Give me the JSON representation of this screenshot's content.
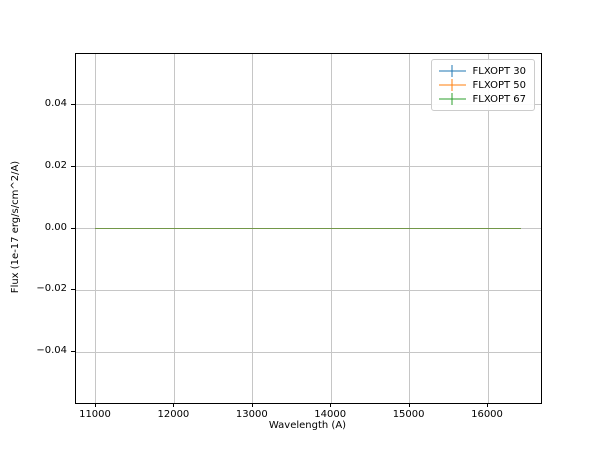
{
  "chart_data": {
    "type": "line",
    "title": "",
    "xlabel": "Wavelength (A)",
    "ylabel": "Flux (1e-17 erg/s/cm^2/A)",
    "xlim": [
      10745,
      16676
    ],
    "ylim": [
      -0.0565,
      0.0565
    ],
    "xticks": [
      {
        "value": 11000,
        "label": "11000"
      },
      {
        "value": 12000,
        "label": "12000"
      },
      {
        "value": 13000,
        "label": "13000"
      },
      {
        "value": 14000,
        "label": "14000"
      },
      {
        "value": 15000,
        "label": "15000"
      },
      {
        "value": 16000,
        "label": "16000"
      }
    ],
    "yticks": [
      {
        "value": 0.04,
        "label": "0.04"
      },
      {
        "value": 0.02,
        "label": "0.02"
      },
      {
        "value": 0.0,
        "label": "0.00"
      },
      {
        "value": -0.02,
        "label": "−0.02"
      },
      {
        "value": -0.04,
        "label": "−0.04"
      }
    ],
    "grid": true,
    "grid_color": "#c6c6c6",
    "background_color": "#ffffff",
    "spine_color": "#000000",
    "legend": {
      "position": "upper right",
      "border_color": "#cccccc",
      "entries": [
        "FLXOPT 30",
        "FLXOPT 50",
        "FLXOPT 67"
      ]
    },
    "series": [
      {
        "name": "FLXOPT 30",
        "color": "#1f77b4",
        "alpha": 0.5,
        "x": [
          10990,
          16425
        ],
        "y": [
          0,
          0
        ]
      },
      {
        "name": "FLXOPT 50",
        "color": "#ff7f0e",
        "alpha": 0.5,
        "x": [
          10990,
          16425
        ],
        "y": [
          0,
          0
        ]
      },
      {
        "name": "FLXOPT 67",
        "color": "#2ca02c",
        "alpha": 0.5,
        "x": [
          10990,
          16425
        ],
        "y": [
          0,
          0
        ]
      }
    ]
  }
}
